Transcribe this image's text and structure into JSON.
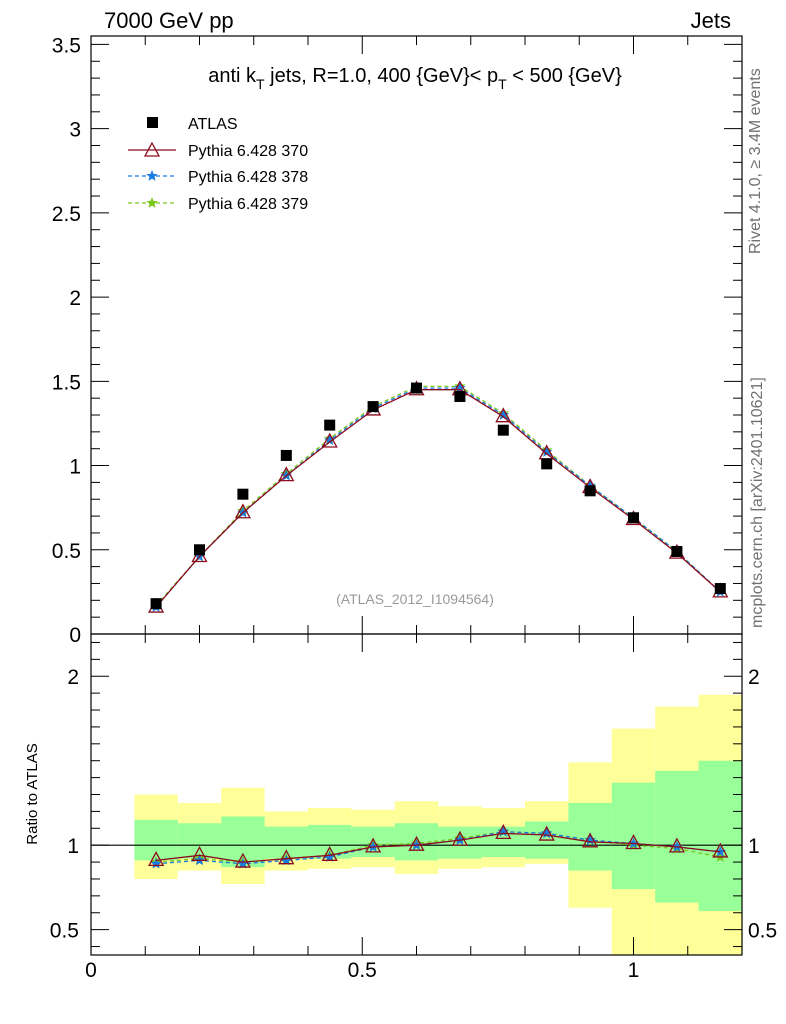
{
  "header": {
    "left": "7000 GeV pp",
    "right": "Jets"
  },
  "side_labels": {
    "rivet": "Rivet 4.1.0, ≥ 3.4M events",
    "mcplots": "mcplots.cern.ch [arXiv:2401.10621]"
  },
  "chart_data": [
    {
      "type": "scatter",
      "title_parts": {
        "pre": "anti k",
        "sub1": "T",
        "mid": " jets, R=1.0,  400 {GeV}< p",
        "sub2": "T",
        "post": " < 500 {GeV}"
      },
      "watermark": "(ATLAS_2012_I1094564)",
      "xlim": [
        0,
        1.2
      ],
      "ylim": [
        0,
        3.55
      ],
      "y_ticks": [
        "0",
        "0.5",
        "1",
        "1.5",
        "2",
        "2.5",
        "3",
        "3.5"
      ],
      "y_tick_values": [
        0,
        0.5,
        1,
        1.5,
        2,
        2.5,
        3,
        3.5
      ],
      "x": [
        0.12,
        0.2,
        0.28,
        0.36,
        0.44,
        0.52,
        0.6,
        0.68,
        0.76,
        0.84,
        0.92,
        1.0,
        1.08,
        1.16
      ],
      "legend": {
        "data": "ATLAS",
        "s370": "Pythia 6.428 370",
        "s378": "Pythia 6.428 378",
        "s379": "Pythia 6.428 379"
      },
      "series": [
        {
          "name": "ATLAS",
          "color": "#000000",
          "marker": "square",
          "values": [
            0.18,
            0.5,
            0.83,
            1.06,
            1.24,
            1.35,
            1.46,
            1.41,
            1.21,
            1.01,
            0.85,
            0.69,
            0.49,
            0.27
          ]
        },
        {
          "name": "Pythia 6.428 370",
          "color": "#8b0c1e",
          "marker": "triangle",
          "values": [
            0.16,
            0.46,
            0.72,
            0.94,
            1.14,
            1.33,
            1.45,
            1.45,
            1.29,
            1.07,
            0.87,
            0.68,
            0.48,
            0.25
          ]
        },
        {
          "name": "Pythia 6.428 378",
          "color": "#1a7be0",
          "marker": "star",
          "values": [
            0.16,
            0.46,
            0.72,
            0.94,
            1.15,
            1.34,
            1.46,
            1.46,
            1.3,
            1.08,
            0.88,
            0.69,
            0.49,
            0.25
          ]
        },
        {
          "name": "Pythia 6.428 379",
          "color": "#7bc81d",
          "marker": "star",
          "values": [
            0.17,
            0.46,
            0.73,
            0.95,
            1.16,
            1.35,
            1.47,
            1.47,
            1.31,
            1.09,
            0.88,
            0.69,
            0.49,
            0.25
          ]
        }
      ]
    },
    {
      "type": "scatter",
      "ylabel": "Ratio to ATLAS",
      "xlim": [
        0,
        1.2
      ],
      "ylim": [
        0.35,
        2.25
      ],
      "x_ticks": [
        "0",
        "0.5",
        "1"
      ],
      "x_tick_values": [
        0,
        0.5,
        1
      ],
      "y_ticks": [
        "0.5",
        "1",
        "2"
      ],
      "y_tick_values": [
        0.5,
        1,
        2
      ],
      "bin_edges": [
        0.08,
        0.16,
        0.24,
        0.32,
        0.4,
        0.48,
        0.56,
        0.64,
        0.72,
        0.8,
        0.88,
        0.96,
        1.04,
        1.12,
        1.2
      ],
      "band_yellow": {
        "color": "#ffff99",
        "low": [
          0.8,
          0.85,
          0.77,
          0.85,
          0.86,
          0.87,
          0.83,
          0.86,
          0.87,
          0.89,
          0.63,
          0.35,
          0.35,
          0.35
        ],
        "high": [
          1.3,
          1.25,
          1.34,
          1.2,
          1.22,
          1.21,
          1.26,
          1.23,
          1.22,
          1.26,
          1.49,
          1.69,
          1.82,
          1.89
        ]
      },
      "band_green": {
        "color": "#99ff99",
        "low": [
          0.91,
          0.92,
          0.87,
          0.92,
          0.92,
          0.93,
          0.91,
          0.92,
          0.93,
          0.92,
          0.85,
          0.74,
          0.66,
          0.61
        ],
        "high": [
          1.15,
          1.13,
          1.17,
          1.11,
          1.12,
          1.11,
          1.13,
          1.11,
          1.11,
          1.14,
          1.25,
          1.37,
          1.44,
          1.5
        ]
      },
      "series": [
        {
          "name": "Pythia 6.428 370",
          "color": "#8b0c1e",
          "marker": "triangle",
          "values": [
            0.91,
            0.94,
            0.9,
            0.92,
            0.94,
            0.99,
            1.0,
            1.03,
            1.07,
            1.06,
            1.02,
            1.01,
            0.99,
            0.96
          ]
        },
        {
          "name": "Pythia 6.428 378",
          "color": "#1a7be0",
          "marker": "star",
          "values": [
            0.89,
            0.91,
            0.89,
            0.91,
            0.93,
            0.99,
            1.0,
            1.03,
            1.08,
            1.07,
            1.03,
            1.01,
            0.99,
            0.96
          ]
        },
        {
          "name": "Pythia 6.428 379",
          "color": "#7bc81d",
          "marker": "star",
          "values": [
            0.9,
            0.92,
            0.9,
            0.92,
            0.94,
            1.0,
            1.01,
            1.04,
            1.08,
            1.07,
            1.03,
            1.0,
            0.98,
            0.93
          ]
        }
      ]
    }
  ]
}
